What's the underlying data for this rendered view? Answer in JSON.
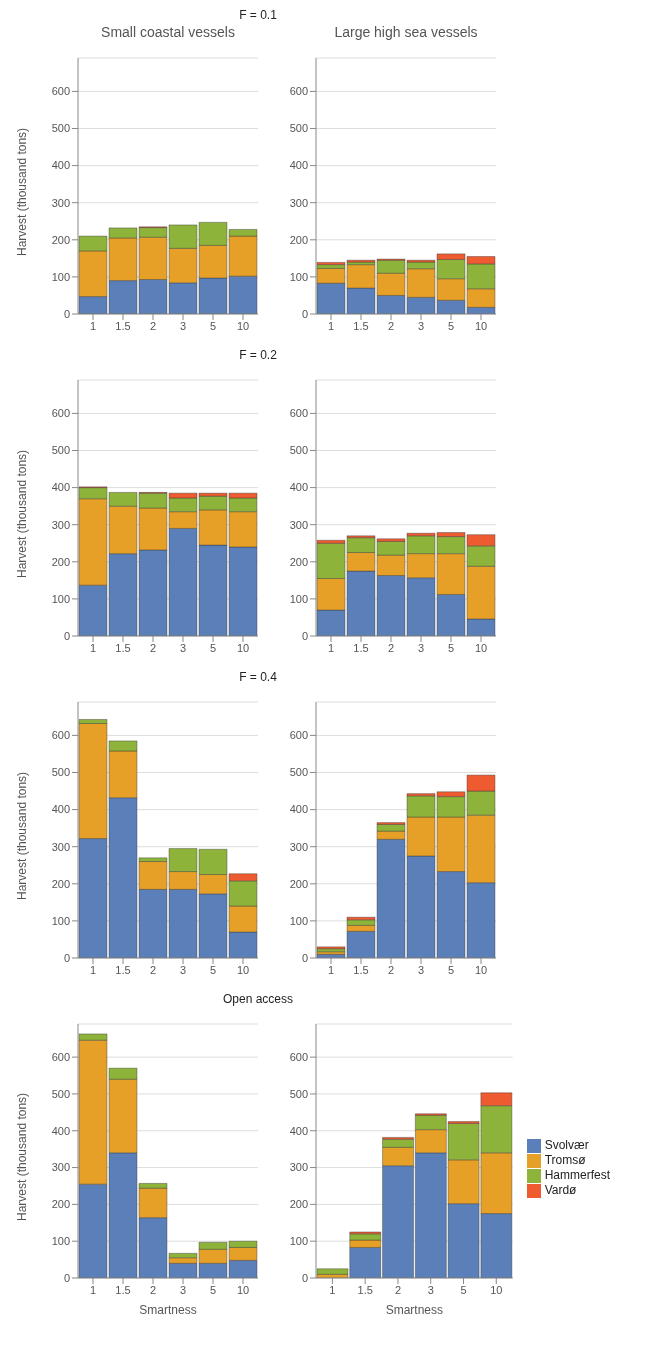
{
  "chart_data": [
    {
      "type": "bar",
      "title": "Small coastal vessels",
      "annotations": [
        "F = 0.1"
      ],
      "ylabel": "Harvest (thousand tons)",
      "categories": [
        "1",
        "1.5",
        "2",
        "3",
        "5",
        "10"
      ],
      "stacked": true,
      "ylim": [
        0,
        690
      ],
      "yticks": [
        0,
        100,
        200,
        300,
        400,
        500,
        600
      ],
      "grid": "y",
      "series": [
        {
          "color": "#5b7fb8",
          "values": [
            47,
            90,
            93,
            84,
            97,
            102
          ]
        },
        {
          "color": "#e6a028",
          "values": [
            123,
            115,
            114,
            93,
            88,
            108
          ]
        },
        {
          "color": "#8db33a",
          "values": [
            40,
            27,
            26,
            63,
            62,
            18
          ]
        },
        {
          "color": "#ef5b31",
          "values": [
            0,
            0,
            2,
            0,
            0,
            0
          ]
        }
      ]
    },
    {
      "type": "bar",
      "title": "Large high sea vessels",
      "categories": [
        "1",
        "1.5",
        "2",
        "3",
        "5",
        "10"
      ],
      "stacked": true,
      "ylim": [
        0,
        690
      ],
      "yticks": [
        0,
        100,
        200,
        300,
        400,
        500,
        600
      ],
      "grid": "y",
      "series": [
        {
          "color": "#5b7fb8",
          "values": [
            83,
            70,
            50,
            45,
            37,
            18
          ]
        },
        {
          "color": "#e6a028",
          "values": [
            40,
            63,
            60,
            77,
            58,
            50
          ]
        },
        {
          "color": "#8db33a",
          "values": [
            10,
            7,
            35,
            18,
            52,
            67
          ]
        },
        {
          "color": "#ef5b31",
          "values": [
            6,
            5,
            3,
            5,
            15,
            20
          ]
        }
      ]
    },
    {
      "type": "bar",
      "annotations": [
        "F = 0.2"
      ],
      "ylabel": "Harvest (thousand tons)",
      "categories": [
        "1",
        "1.5",
        "2",
        "3",
        "5",
        "10"
      ],
      "stacked": true,
      "ylim": [
        0,
        690
      ],
      "yticks": [
        0,
        100,
        200,
        300,
        400,
        500,
        600
      ],
      "grid": "y",
      "series": [
        {
          "color": "#5b7fb8",
          "values": [
            137,
            222,
            232,
            290,
            245,
            240
          ]
        },
        {
          "color": "#e6a028",
          "values": [
            233,
            128,
            113,
            45,
            95,
            95
          ]
        },
        {
          "color": "#8db33a",
          "values": [
            30,
            37,
            40,
            37,
            37,
            37
          ]
        },
        {
          "color": "#ef5b31",
          "values": [
            2,
            0,
            2,
            13,
            8,
            13
          ]
        }
      ]
    },
    {
      "type": "bar",
      "categories": [
        "1",
        "1.5",
        "2",
        "3",
        "5",
        "10"
      ],
      "stacked": true,
      "ylim": [
        0,
        690
      ],
      "yticks": [
        0,
        100,
        200,
        300,
        400,
        500,
        600
      ],
      "grid": "y",
      "series": [
        {
          "color": "#5b7fb8",
          "values": [
            70,
            175,
            163,
            157,
            112,
            46
          ]
        },
        {
          "color": "#e6a028",
          "values": [
            85,
            50,
            55,
            65,
            110,
            142
          ]
        },
        {
          "color": "#8db33a",
          "values": [
            95,
            40,
            37,
            48,
            46,
            55
          ]
        },
        {
          "color": "#ef5b31",
          "values": [
            8,
            5,
            7,
            7,
            11,
            30
          ]
        }
      ]
    },
    {
      "type": "bar",
      "annotations": [
        "F = 0.4"
      ],
      "ylabel": "Harvest (thousand tons)",
      "categories": [
        "1",
        "1.5",
        "2",
        "3",
        "5",
        "10"
      ],
      "stacked": true,
      "ylim": [
        0,
        690
      ],
      "yticks": [
        0,
        100,
        200,
        300,
        400,
        500,
        600
      ],
      "grid": "y",
      "series": [
        {
          "color": "#5b7fb8",
          "values": [
            322,
            432,
            185,
            185,
            173,
            70
          ]
        },
        {
          "color": "#e6a028",
          "values": [
            310,
            126,
            75,
            48,
            52,
            70
          ]
        },
        {
          "color": "#8db33a",
          "values": [
            11,
            27,
            10,
            62,
            68,
            68
          ]
        },
        {
          "color": "#ef5b31",
          "values": [
            0,
            0,
            0,
            0,
            0,
            19
          ]
        }
      ]
    },
    {
      "type": "bar",
      "categories": [
        "1",
        "1.5",
        "2",
        "3",
        "5",
        "10"
      ],
      "stacked": true,
      "ylim": [
        0,
        690
      ],
      "yticks": [
        0,
        100,
        200,
        300,
        400,
        500,
        600
      ],
      "grid": "y",
      "series": [
        {
          "color": "#5b7fb8",
          "values": [
            10,
            72,
            320,
            275,
            233,
            203
          ]
        },
        {
          "color": "#e6a028",
          "values": [
            7,
            16,
            22,
            105,
            147,
            182
          ]
        },
        {
          "color": "#8db33a",
          "values": [
            8,
            15,
            18,
            57,
            55,
            65
          ]
        },
        {
          "color": "#ef5b31",
          "values": [
            5,
            7,
            5,
            6,
            13,
            43
          ]
        }
      ]
    },
    {
      "type": "bar",
      "annotations": [
        "Open access"
      ],
      "ylabel": "Harvest (thousand tons)",
      "xlabel": "Smartness",
      "categories": [
        "1",
        "1.5",
        "2",
        "3",
        "5",
        "10"
      ],
      "stacked": true,
      "ylim": [
        0,
        690
      ],
      "yticks": [
        0,
        100,
        200,
        300,
        400,
        500,
        600
      ],
      "grid": "y",
      "series": [
        {
          "color": "#5b7fb8",
          "values": [
            255,
            340,
            164,
            40,
            40,
            48
          ]
        },
        {
          "color": "#e6a028",
          "values": [
            391,
            200,
            80,
            15,
            38,
            35
          ]
        },
        {
          "color": "#8db33a",
          "values": [
            17,
            30,
            13,
            12,
            19,
            17
          ]
        },
        {
          "color": "#ef5b31",
          "values": [
            0,
            0,
            0,
            0,
            0,
            0
          ]
        }
      ]
    },
    {
      "type": "bar",
      "xlabel": "Smartness",
      "categories": [
        "1",
        "1.5",
        "2",
        "3",
        "5",
        "10"
      ],
      "stacked": true,
      "ylim": [
        0,
        690
      ],
      "yticks": [
        0,
        100,
        200,
        300,
        400,
        500,
        600
      ],
      "grid": "y",
      "legend": "right",
      "series": [
        {
          "name": "Svolvær",
          "color": "#5b7fb8",
          "values": [
            null,
            83,
            305,
            340,
            202,
            175
          ]
        },
        {
          "name": "Tromsø",
          "color": "#e6a028",
          "values": [
            10,
            20,
            50,
            63,
            119,
            165
          ]
        },
        {
          "name": "Hammerfest",
          "color": "#8db33a",
          "values": [
            15,
            17,
            22,
            39,
            99,
            128
          ]
        },
        {
          "name": "Vardø",
          "color": "#ef5b31",
          "values": [
            0,
            5,
            5,
            4,
            5,
            35
          ]
        }
      ]
    }
  ]
}
